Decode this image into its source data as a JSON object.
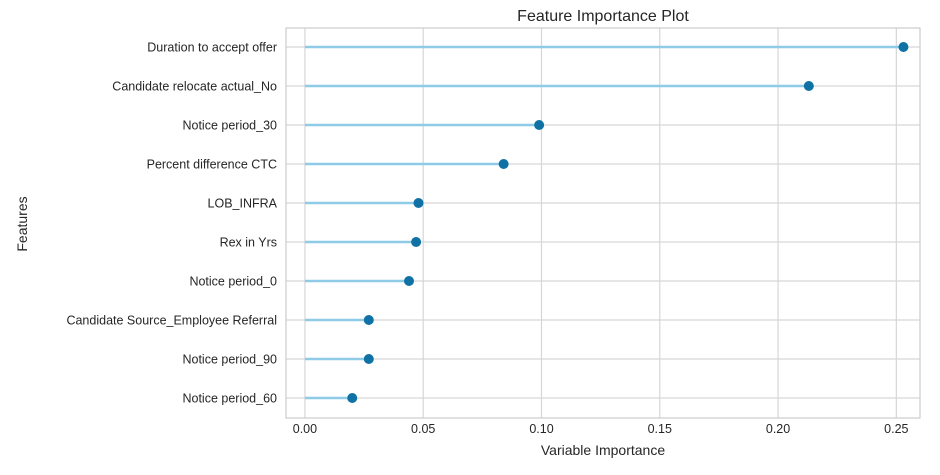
{
  "chart_data": {
    "type": "lollipop",
    "title": "Feature Importance Plot",
    "xlabel": "Variable Importance",
    "ylabel": "Features",
    "xlim": [
      -0.008,
      0.26
    ],
    "xticks": [
      0.0,
      0.05,
      0.1,
      0.15,
      0.2,
      0.25
    ],
    "xtick_labels": [
      "0.00",
      "0.05",
      "0.10",
      "0.15",
      "0.20",
      "0.25"
    ],
    "grid": true,
    "categories": [
      "Duration to accept offer",
      "Candidate relocate actual_No",
      "Notice period_30",
      "Percent difference CTC",
      "LOB_INFRA",
      "Rex in Yrs",
      "Notice period_0",
      "Candidate Source_Employee Referral",
      "Notice period_90",
      "Notice period_60"
    ],
    "values": [
      0.253,
      0.213,
      0.099,
      0.084,
      0.048,
      0.047,
      0.044,
      0.027,
      0.027,
      0.02
    ],
    "colors": {
      "stem": "#8ecbe6",
      "marker": "#1072a4",
      "grid": "#d6d6d6"
    }
  }
}
